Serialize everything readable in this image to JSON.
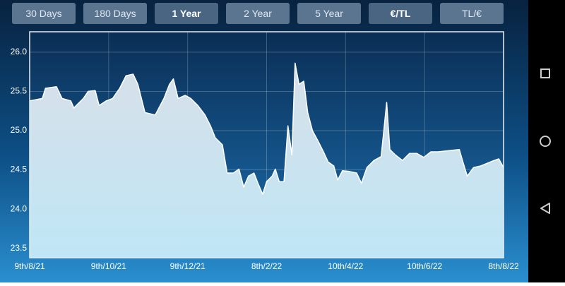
{
  "buttons": [
    {
      "label": "30 Days",
      "active": false
    },
    {
      "label": "180 Days",
      "active": false
    },
    {
      "label": "1 Year",
      "active": true
    },
    {
      "label": "2 Year",
      "active": false
    },
    {
      "label": "5 Year",
      "active": false
    },
    {
      "label": "€/TL",
      "active": true
    },
    {
      "label": "TL/€",
      "active": false
    }
  ],
  "chart_data": {
    "type": "area",
    "x": [
      0,
      0.16,
      0.2,
      0.34,
      0.41,
      0.52,
      0.56,
      0.68,
      0.74,
      0.83,
      0.88,
      0.97,
      1.05,
      1.14,
      1.22,
      1.31,
      1.37,
      1.46,
      1.59,
      1.7,
      1.77,
      1.82,
      1.88,
      1.97,
      2.04,
      2.13,
      2.22,
      2.29,
      2.35,
      2.44,
      2.5,
      2.58,
      2.65,
      2.71,
      2.77,
      2.84,
      2.89,
      2.95,
      3.0,
      3.07,
      3.11,
      3.16,
      3.22,
      3.27,
      3.32,
      3.36,
      3.41,
      3.47,
      3.52,
      3.58,
      3.65,
      3.72,
      3.78,
      3.85,
      3.9,
      3.96,
      4.05,
      4.14,
      4.2,
      4.27,
      4.36,
      4.45,
      4.52,
      4.56,
      4.63,
      4.72,
      4.81,
      4.9,
      4.99,
      5.08,
      5.17,
      5.35,
      5.44,
      5.48,
      5.54,
      5.62,
      5.71,
      5.88,
      5.94,
      6.0
    ],
    "values": [
      25.38,
      25.41,
      25.54,
      25.56,
      25.41,
      25.38,
      25.29,
      25.41,
      25.5,
      25.51,
      25.32,
      25.38,
      25.41,
      25.54,
      25.7,
      25.72,
      25.59,
      25.23,
      25.2,
      25.41,
      25.59,
      25.66,
      25.41,
      25.45,
      25.41,
      25.32,
      25.2,
      25.06,
      24.91,
      24.82,
      24.46,
      24.46,
      24.51,
      24.28,
      24.42,
      24.46,
      24.33,
      24.19,
      24.35,
      24.42,
      24.51,
      24.35,
      24.35,
      25.06,
      24.69,
      25.86,
      25.59,
      25.63,
      25.23,
      25.0,
      24.87,
      24.73,
      24.6,
      24.55,
      24.37,
      24.49,
      24.48,
      24.46,
      24.33,
      24.53,
      24.62,
      24.67,
      25.36,
      24.76,
      24.69,
      24.62,
      24.71,
      24.71,
      24.66,
      24.73,
      24.73,
      24.75,
      24.76,
      24.62,
      24.42,
      24.53,
      24.55,
      24.62,
      24.64,
      24.53
    ],
    "color": "#ffffff",
    "fill": "#cfe2ee",
    "xlim": [
      0,
      6
    ],
    "xticks": [
      {
        "value": 0,
        "label": "9th/8/21"
      },
      {
        "value": 1,
        "label": "9th/10/21"
      },
      {
        "value": 2,
        "label": "9th/12/21"
      },
      {
        "value": 3,
        "label": "8th/2/22"
      },
      {
        "value": 4,
        "label": "10th/4/22"
      },
      {
        "value": 5,
        "label": "10th/6/22"
      },
      {
        "value": 6,
        "label": "8th/8/22"
      }
    ],
    "ylim": [
      23.38,
      26.26
    ],
    "yticks": [
      23.5,
      {
        "value": 24,
        "label": "24.0"
      },
      24.5,
      {
        "value": 25,
        "label": "25.0"
      },
      25.5,
      {
        "value": 26,
        "label": "26.0"
      }
    ],
    "grid": true
  }
}
